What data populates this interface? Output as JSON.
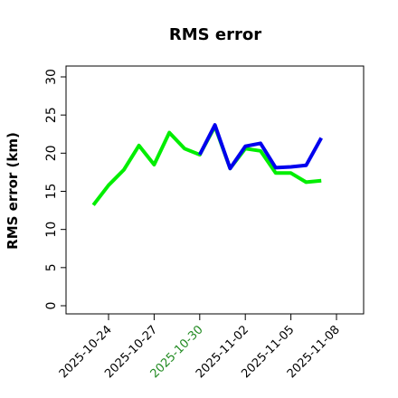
{
  "chart_data": {
    "type": "line",
    "title": "RMS error",
    "xlabel": "",
    "ylabel": "RMS error (km)",
    "ylim": [
      0,
      30
    ],
    "yticks": [
      0,
      5,
      10,
      15,
      20,
      25,
      30
    ],
    "xticks": [
      "2025-10-24",
      "2025-10-27",
      "2025-10-30",
      "2025-11-02",
      "2025-11-05",
      "2025-11-08"
    ],
    "highlight_tick": "2025-10-30",
    "highlight_color": "#228B22",
    "grid": false,
    "series": [
      {
        "color": "#00ee00",
        "points": [
          {
            "x": "2025-10-23",
            "y": 13.2
          },
          {
            "x": "2025-10-24",
            "y": 15.8
          },
          {
            "x": "2025-10-25",
            "y": 17.8
          },
          {
            "x": "2025-10-26",
            "y": 21.0
          },
          {
            "x": "2025-10-27",
            "y": 18.5
          },
          {
            "x": "2025-10-28",
            "y": 22.7
          },
          {
            "x": "2025-10-29",
            "y": 20.6
          },
          {
            "x": "2025-10-30",
            "y": 19.8
          },
          {
            "x": "2025-10-31",
            "y": 23.5
          },
          {
            "x": "2025-11-01",
            "y": 18.0
          },
          {
            "x": "2025-11-02",
            "y": 20.6
          },
          {
            "x": "2025-11-03",
            "y": 20.3
          },
          {
            "x": "2025-11-04",
            "y": 17.4
          },
          {
            "x": "2025-11-05",
            "y": 17.4
          },
          {
            "x": "2025-11-06",
            "y": 16.2
          },
          {
            "x": "2025-11-07",
            "y": 16.4
          }
        ]
      },
      {
        "color": "#0000ee",
        "points": [
          {
            "x": "2025-10-30",
            "y": 19.8
          },
          {
            "x": "2025-10-31",
            "y": 23.7
          },
          {
            "x": "2025-11-01",
            "y": 18.0
          },
          {
            "x": "2025-11-02",
            "y": 20.9
          },
          {
            "x": "2025-11-03",
            "y": 21.3
          },
          {
            "x": "2025-11-04",
            "y": 18.1
          },
          {
            "x": "2025-11-05",
            "y": 18.2
          },
          {
            "x": "2025-11-06",
            "y": 18.4
          },
          {
            "x": "2025-11-07",
            "y": 22.0
          }
        ]
      }
    ]
  }
}
